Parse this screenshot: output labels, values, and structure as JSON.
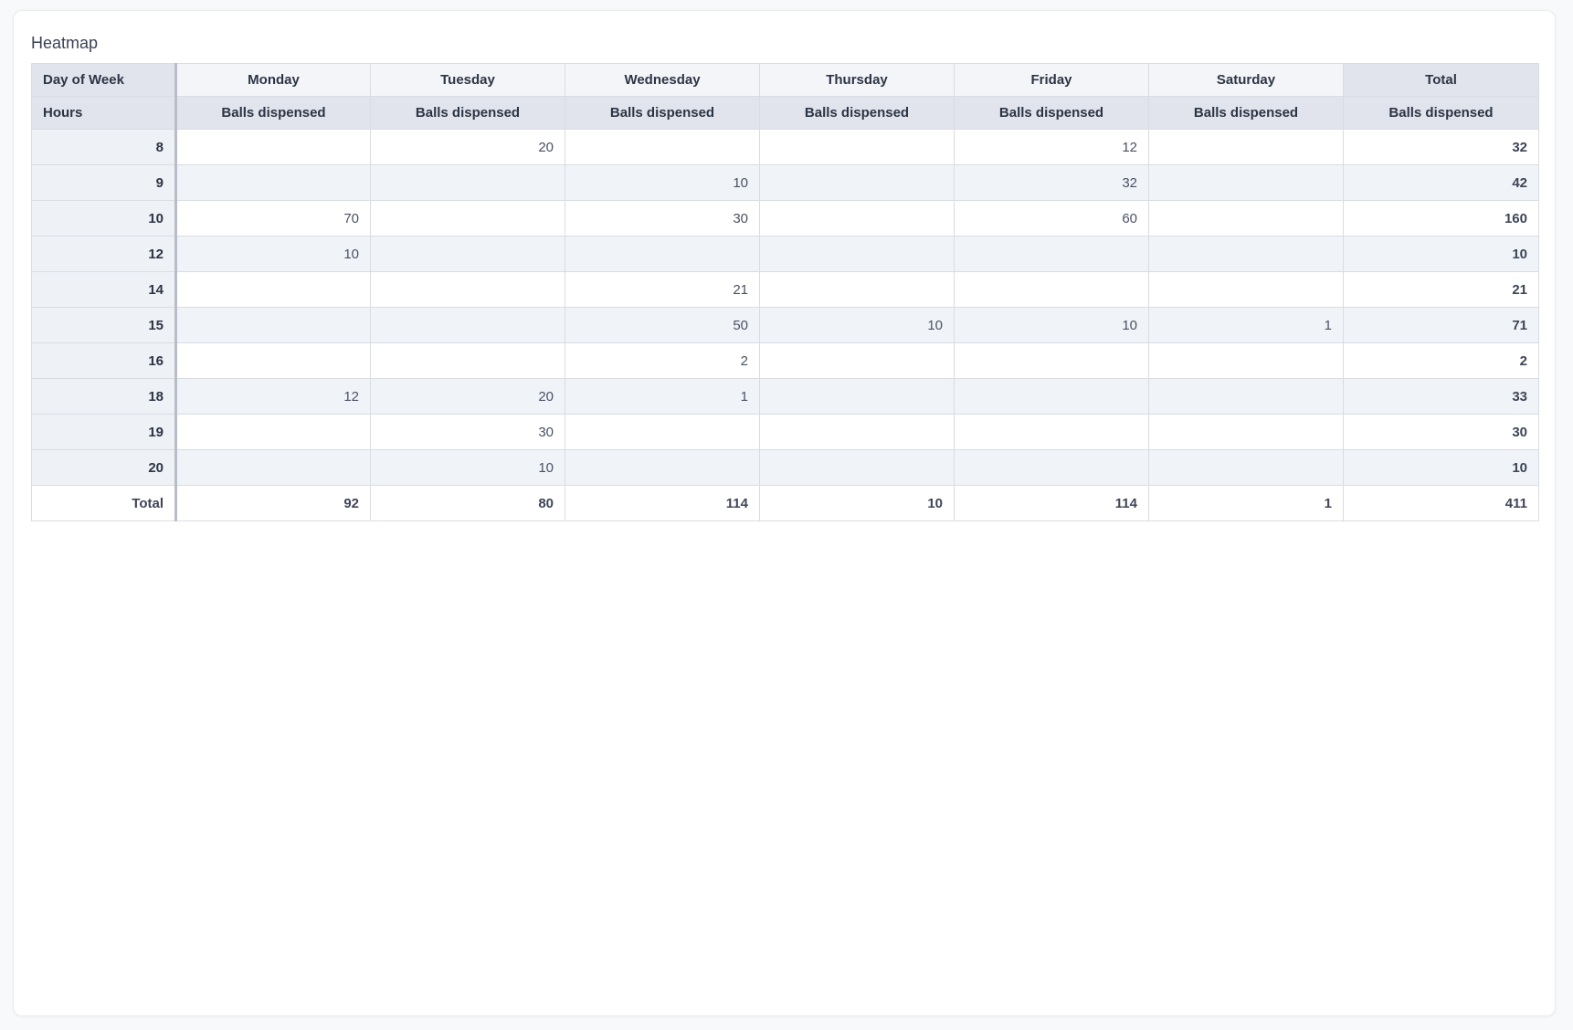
{
  "title": "Heatmap",
  "chart_data": {
    "type": "table",
    "title": "Heatmap",
    "corner_header": "Day of Week",
    "row_header": "Hours",
    "measure": "Balls dispensed",
    "day_columns": [
      "Monday",
      "Tuesday",
      "Wednesday",
      "Thursday",
      "Friday",
      "Saturday"
    ],
    "total_label": "Total",
    "rows": [
      {
        "hour": "8",
        "values": [
          "",
          "20",
          "",
          "",
          "12",
          ""
        ],
        "total": "32"
      },
      {
        "hour": "9",
        "values": [
          "",
          "",
          "10",
          "",
          "32",
          ""
        ],
        "total": "42"
      },
      {
        "hour": "10",
        "values": [
          "70",
          "",
          "30",
          "",
          "60",
          ""
        ],
        "total": "160"
      },
      {
        "hour": "12",
        "values": [
          "10",
          "",
          "",
          "",
          "",
          ""
        ],
        "total": "10"
      },
      {
        "hour": "14",
        "values": [
          "",
          "",
          "21",
          "",
          "",
          ""
        ],
        "total": "21"
      },
      {
        "hour": "15",
        "values": [
          "",
          "",
          "50",
          "10",
          "10",
          "1"
        ],
        "total": "71"
      },
      {
        "hour": "16",
        "values": [
          "",
          "",
          "2",
          "",
          "",
          ""
        ],
        "total": "2"
      },
      {
        "hour": "18",
        "values": [
          "12",
          "20",
          "1",
          "",
          "",
          ""
        ],
        "total": "33"
      },
      {
        "hour": "19",
        "values": [
          "",
          "30",
          "",
          "",
          "",
          ""
        ],
        "total": "30"
      },
      {
        "hour": "20",
        "values": [
          "",
          "10",
          "",
          "",
          "",
          ""
        ],
        "total": "10"
      }
    ],
    "totals_row": {
      "label": "Total",
      "values": [
        "92",
        "80",
        "114",
        "10",
        "114",
        "1"
      ],
      "grand_total": "411"
    }
  },
  "colors": {
    "page_bg": "#f8f9fa",
    "card_bg": "#ffffff",
    "header_fill": "#e1e4ec",
    "day_header_fill": "#f3f5f9",
    "stripe_fill": "#f0f3f8",
    "hours_column_fill": "#eef1f6",
    "grid_border": "#d9dce3",
    "column_separator": "#b9bdc8",
    "header_text": "#2d3444",
    "value_text": "#4a5163",
    "title_text": "#3b4256"
  }
}
